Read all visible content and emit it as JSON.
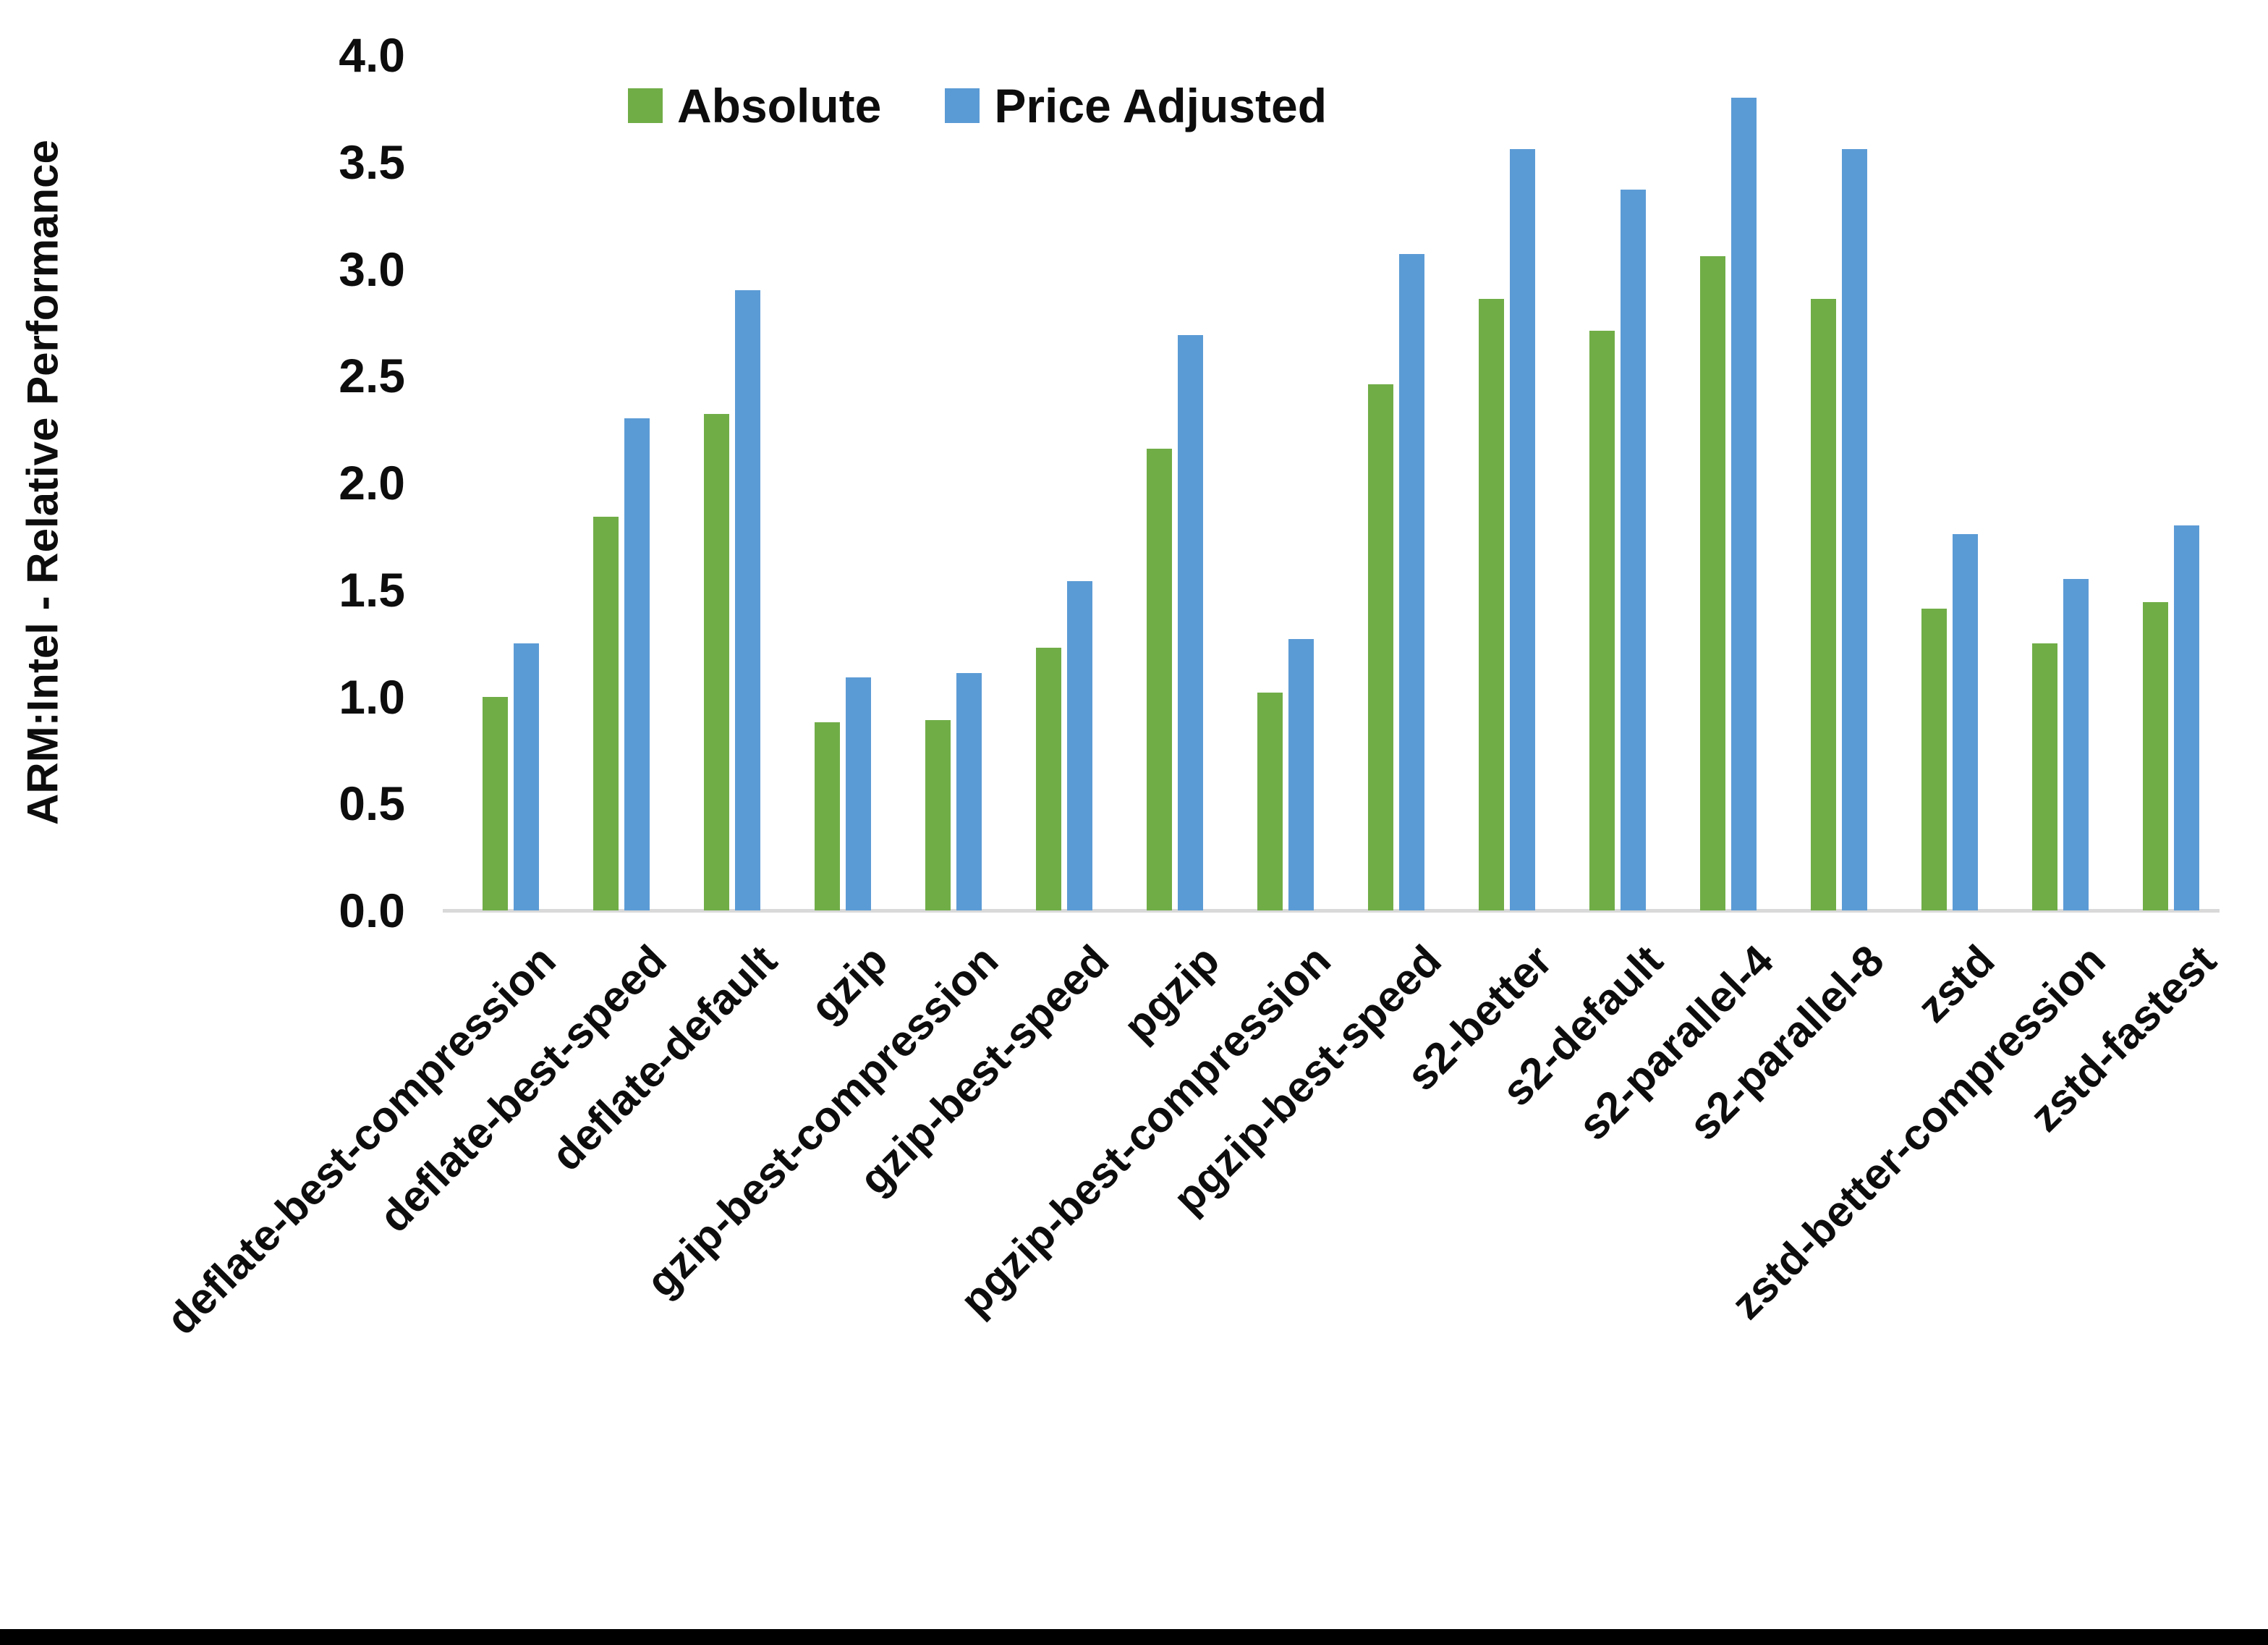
{
  "chart_data": {
    "type": "bar",
    "title": "",
    "xlabel": "",
    "ylabel": "ARM:Intel - Relative Performance",
    "ylim": [
      0.0,
      4.0
    ],
    "ytick_step": 0.5,
    "yticks": [
      "0.0",
      "0.5",
      "1.0",
      "1.5",
      "2.0",
      "2.5",
      "3.0",
      "3.5",
      "4.0"
    ],
    "grid": false,
    "legend_position": "top-center",
    "categories": [
      "deflate-best-compression",
      "deflate-best-speed",
      "deflate-default",
      "gzip",
      "gzip-best-compression",
      "gzip-best-speed",
      "pgzip",
      "pgzip-best-compression",
      "pgzip-best-speed",
      "s2-better",
      "s2-default",
      "s2-parallel-4",
      "s2-parallel-8",
      "zstd",
      "zstd-better-compression",
      "zstd-fastest"
    ],
    "series": [
      {
        "name": "Absolute",
        "color": "#70AD47",
        "values": [
          1.0,
          1.84,
          2.32,
          0.88,
          0.89,
          1.23,
          2.16,
          1.02,
          2.46,
          2.86,
          2.71,
          3.06,
          2.86,
          1.41,
          1.25,
          1.44
        ]
      },
      {
        "name": "Price Adjusted",
        "color": "#5B9BD5",
        "values": [
          1.25,
          2.3,
          2.9,
          1.09,
          1.11,
          1.54,
          2.69,
          1.27,
          3.07,
          3.56,
          3.37,
          3.8,
          3.56,
          1.76,
          1.55,
          1.8
        ]
      }
    ]
  },
  "colors": {
    "axis_line": "#d9d9d9",
    "text": "#0d0d0d",
    "background": "#ffffff",
    "bottom_border": "#000000"
  }
}
